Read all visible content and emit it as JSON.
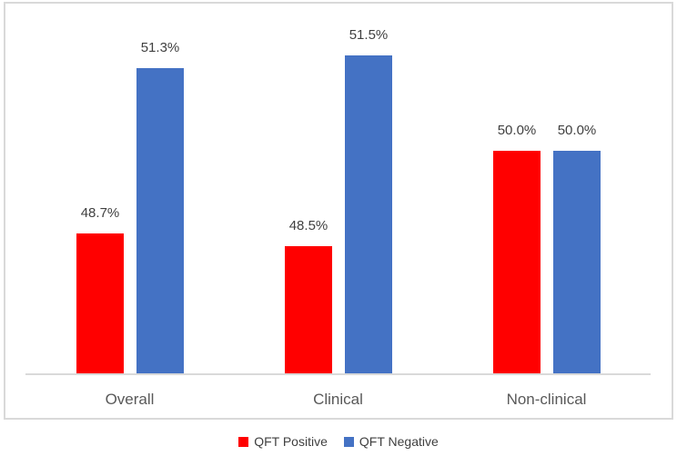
{
  "chart_data": {
    "type": "bar",
    "title": "",
    "xlabel": "",
    "ylabel": "",
    "categories": [
      "Overall",
      "Clinical",
      "Non-clinical"
    ],
    "series": [
      {
        "name": "QFT Positive",
        "color": "#FF0000",
        "values": [
          48.7,
          48.5,
          50.0
        ]
      },
      {
        "name": "QFT Negative",
        "color": "#4472C4",
        "values": [
          51.3,
          51.5,
          50.0
        ]
      }
    ],
    "data_labels": [
      [
        "48.7%",
        "48.5%",
        "50.0%"
      ],
      [
        "51.3%",
        "51.5%",
        "50.0%"
      ]
    ],
    "ylim": [
      46.5,
      52.5
    ],
    "grid": false,
    "y_axis_visible": false,
    "legend_position": "bottom",
    "colors": {
      "background": "#FFFFFF",
      "frame_border": "#D9D9D9",
      "axis_line": "#D9D9D9",
      "data_label_text": "#404040",
      "category_label_text": "#595959",
      "legend_text": "#404040"
    }
  }
}
